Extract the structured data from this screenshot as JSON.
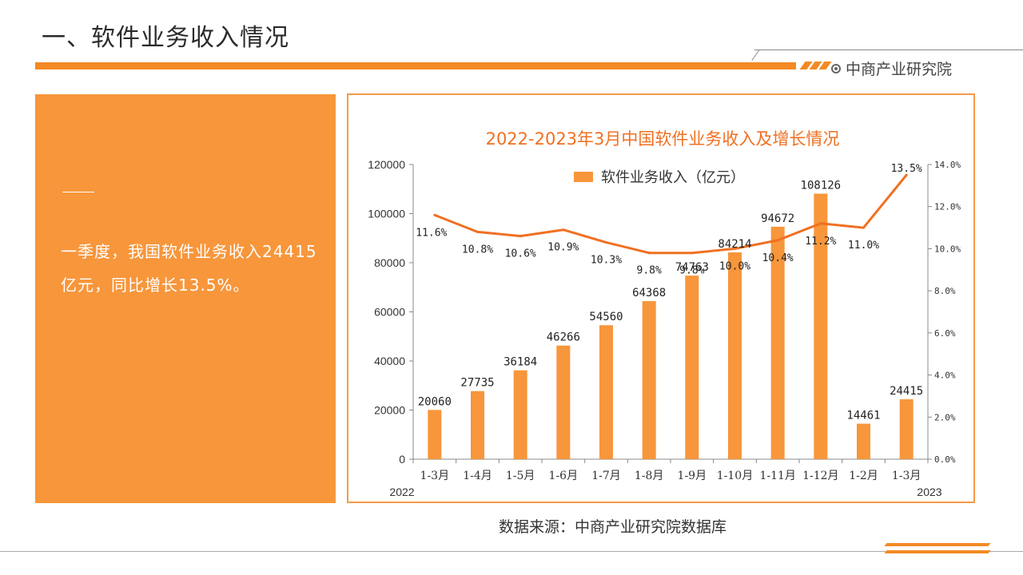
{
  "page": {
    "title": "一、软件业务收入情况",
    "brand": "中商产业研究院",
    "accent_color": "#f38a25",
    "summary": "一季度，我国软件业务收入24415亿元，同比增长13.5%。",
    "source": "数据来源：中商产业研究院数据库"
  },
  "chart_data": {
    "type": "bar",
    "title": "2022-2023年3月中国软件业务收入及增长情况",
    "categories": [
      "1-3月",
      "1-4月",
      "1-5月",
      "1-6月",
      "1-7月",
      "1-8月",
      "1-9月",
      "1-10月",
      "1-11月",
      "1-12月",
      "1-2月",
      "1-3月"
    ],
    "year_labels": {
      "start": "2022",
      "end": "2023"
    },
    "series": [
      {
        "name": "软件业务收入（亿元）",
        "type": "bar",
        "axis": "left",
        "color": "#f7963b",
        "values": [
          20060,
          27735,
          36184,
          46266,
          54560,
          64368,
          74763,
          84214,
          94672,
          108126,
          14461,
          24415
        ]
      },
      {
        "type": "line",
        "axis": "right",
        "color": "#f07022",
        "values": [
          11.6,
          10.8,
          10.6,
          10.9,
          10.3,
          9.8,
          9.8,
          10.0,
          10.4,
          11.2,
          11.0,
          13.5
        ],
        "labels": [
          "11.6%",
          "10.8%",
          "10.6%",
          "10.9%",
          "10.3%",
          "9.8%",
          "9.8%",
          "10.0%",
          "10.4%",
          "11.2%",
          "11.0%",
          "13.5%"
        ]
      }
    ],
    "y_left": {
      "min": 0,
      "max": 120000,
      "ticks": [
        "0",
        "20000",
        "40000",
        "60000",
        "80000",
        "100000",
        "120000"
      ]
    },
    "y_right": {
      "min": 0,
      "max": 14,
      "ticks": [
        "0.0%",
        "2.0%",
        "4.0%",
        "6.0%",
        "8.0%",
        "10.0%",
        "12.0%",
        "14.0%"
      ]
    },
    "legend_position": "top-center",
    "grid": false
  }
}
